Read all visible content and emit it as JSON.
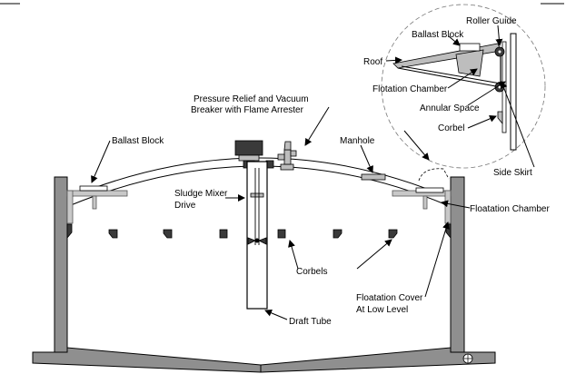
{
  "labels": {
    "roller_guide": "Roller Guide",
    "ballast_block_detail": "Ballast Block",
    "roof": "Roof",
    "flotation_chamber_detail": "Flotation Chamber",
    "annular_space": "Annular Space",
    "corbel": "Corbel",
    "side_skirt": "Side Skirt",
    "pressure_relief_line1": "Pressure Relief and Vacuum",
    "pressure_relief_line2": "Breaker with Flame Arrester",
    "ballast_block": "Ballast Block",
    "manhole": "Manhole",
    "sludge_mixer_line1": "Sludge Mixer",
    "sludge_mixer_line2": "Drive",
    "floatation_chamber": "Floatation Chamber",
    "corbels": "Corbels",
    "floatation_cover_line1": "Floatation Cover",
    "floatation_cover_line2": "At Low Level",
    "draft_tube": "Draft Tube"
  }
}
